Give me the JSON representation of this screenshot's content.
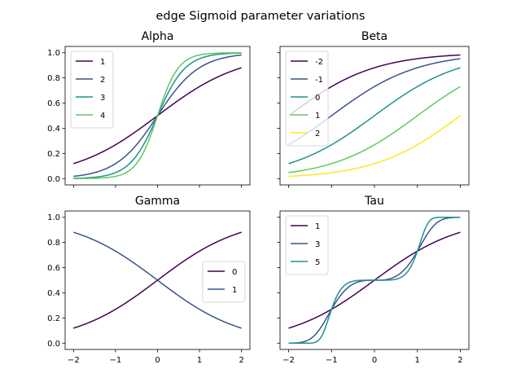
{
  "figure_title": "edge Sigmoid parameter variations",
  "chart_data": [
    {
      "type": "line",
      "title": "Alpha",
      "x_range": [
        -2,
        2
      ],
      "xlim": [
        -2.2,
        2.2
      ],
      "ylim": [
        -0.05,
        1.05
      ],
      "xticks": [
        -2,
        -1,
        0,
        1,
        2
      ],
      "yticks": [
        0.0,
        0.2,
        0.4,
        0.6,
        0.8,
        1.0
      ],
      "ytick_labels": [
        "0.0",
        "0.2",
        "0.4",
        "0.6",
        "0.8",
        "1.0"
      ],
      "show_xtick_labels": false,
      "show_ytick_labels": true,
      "grid": false,
      "legend_position": "upper-left",
      "series": [
        {
          "name": "1",
          "color": "#440154",
          "params": {
            "alpha": 1,
            "beta": 0,
            "gamma": 0,
            "tau": 1
          }
        },
        {
          "name": "2",
          "color": "#3b528b",
          "params": {
            "alpha": 2,
            "beta": 0,
            "gamma": 0,
            "tau": 1
          }
        },
        {
          "name": "3",
          "color": "#21918c",
          "params": {
            "alpha": 3,
            "beta": 0,
            "gamma": 0,
            "tau": 1
          }
        },
        {
          "name": "4",
          "color": "#5ec962",
          "params": {
            "alpha": 4,
            "beta": 0,
            "gamma": 0,
            "tau": 1
          }
        }
      ]
    },
    {
      "type": "line",
      "title": "Beta",
      "x_range": [
        -2,
        2
      ],
      "xlim": [
        -2.2,
        2.2
      ],
      "ylim": [
        -0.05,
        1.05
      ],
      "xticks": [
        -2,
        -1,
        0,
        1,
        2
      ],
      "yticks": [
        0.0,
        0.2,
        0.4,
        0.6,
        0.8,
        1.0
      ],
      "ytick_labels": [
        "0.0",
        "0.2",
        "0.4",
        "0.6",
        "0.8",
        "1.0"
      ],
      "show_xtick_labels": false,
      "show_ytick_labels": false,
      "grid": false,
      "legend_position": "upper-left",
      "series": [
        {
          "name": "-2",
          "color": "#440154",
          "params": {
            "alpha": 1,
            "beta": -2,
            "gamma": 0,
            "tau": 1
          }
        },
        {
          "name": "-1",
          "color": "#3b528b",
          "params": {
            "alpha": 1,
            "beta": -1,
            "gamma": 0,
            "tau": 1
          }
        },
        {
          "name": "0",
          "color": "#21918c",
          "params": {
            "alpha": 1,
            "beta": 0,
            "gamma": 0,
            "tau": 1
          }
        },
        {
          "name": "1",
          "color": "#5ec962",
          "params": {
            "alpha": 1,
            "beta": 1,
            "gamma": 0,
            "tau": 1
          }
        },
        {
          "name": "2",
          "color": "#fde725",
          "params": {
            "alpha": 1,
            "beta": 2,
            "gamma": 0,
            "tau": 1
          }
        }
      ]
    },
    {
      "type": "line",
      "title": "Gamma",
      "x_range": [
        -2,
        2
      ],
      "xlim": [
        -2.2,
        2.2
      ],
      "ylim": [
        -0.05,
        1.05
      ],
      "xticks": [
        -2,
        -1,
        0,
        1,
        2
      ],
      "xtick_labels": [
        "−2",
        "−1",
        "0",
        "1",
        "2"
      ],
      "yticks": [
        0.0,
        0.2,
        0.4,
        0.6,
        0.8,
        1.0
      ],
      "ytick_labels": [
        "0.0",
        "0.2",
        "0.4",
        "0.6",
        "0.8",
        "1.0"
      ],
      "show_xtick_labels": true,
      "show_ytick_labels": true,
      "grid": false,
      "legend_position": "center-right",
      "series": [
        {
          "name": "0",
          "color": "#440154",
          "params": {
            "alpha": 1,
            "beta": 0,
            "gamma": 0,
            "tau": 1
          }
        },
        {
          "name": "1",
          "color": "#3b528b",
          "params": {
            "alpha": 1,
            "beta": 0,
            "gamma": 1,
            "tau": 1
          }
        }
      ]
    },
    {
      "type": "line",
      "title": "Tau",
      "x_range": [
        -2,
        2
      ],
      "xlim": [
        -2.2,
        2.2
      ],
      "ylim": [
        -0.05,
        1.05
      ],
      "xticks": [
        -2,
        -1,
        0,
        1,
        2
      ],
      "xtick_labels": [
        "−2",
        "−1",
        "0",
        "1",
        "2"
      ],
      "yticks": [
        0.0,
        0.2,
        0.4,
        0.6,
        0.8,
        1.0
      ],
      "ytick_labels": [
        "0.0",
        "0.2",
        "0.4",
        "0.6",
        "0.8",
        "1.0"
      ],
      "show_xtick_labels": true,
      "show_ytick_labels": false,
      "grid": false,
      "legend_position": "upper-left",
      "series": [
        {
          "name": "1",
          "color": "#440154",
          "params": {
            "alpha": 1,
            "beta": 0,
            "gamma": 0,
            "tau": 1
          }
        },
        {
          "name": "3",
          "color": "#3b528b",
          "params": {
            "alpha": 1,
            "beta": 0,
            "gamma": 0,
            "tau": 3
          }
        },
        {
          "name": "5",
          "color": "#21918c",
          "params": {
            "alpha": 1,
            "beta": 0,
            "gamma": 0,
            "tau": 5
          }
        }
      ]
    }
  ]
}
